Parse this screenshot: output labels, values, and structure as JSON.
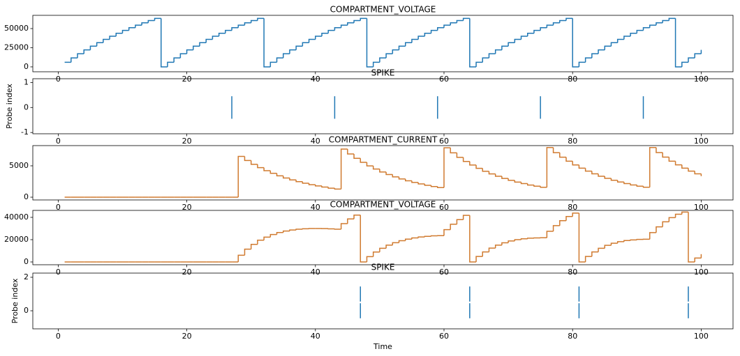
{
  "chart_data": [
    {
      "type": "step",
      "title": "COMPARTMENT_VOLTAGE",
      "color": "#1f77b4",
      "x": [
        1,
        2,
        3,
        4,
        5,
        6,
        7,
        8,
        9,
        10,
        11,
        12,
        13,
        14,
        15,
        16,
        17,
        18,
        19,
        20,
        21,
        22,
        23,
        24,
        25,
        26,
        27,
        28,
        29,
        30,
        31,
        32,
        33,
        34,
        35,
        36,
        37,
        38,
        39,
        40,
        41,
        42,
        43,
        44,
        45,
        46,
        47,
        48,
        49,
        50,
        51,
        52,
        53,
        54,
        55,
        56,
        57,
        58,
        59,
        60,
        61,
        62,
        63,
        64,
        65,
        66,
        67,
        68,
        69,
        70,
        71,
        72,
        73,
        74,
        75,
        76,
        77,
        78,
        79,
        80,
        81,
        82,
        83,
        84,
        85,
        86,
        87,
        88,
        89,
        90,
        91,
        92,
        93,
        94,
        95,
        96,
        97,
        98,
        99,
        100
      ],
      "values": [
        6000,
        11700,
        17100,
        22200,
        27000,
        31600,
        35900,
        40000,
        43900,
        47600,
        51100,
        54400,
        57500,
        60500,
        63300,
        0,
        6000,
        11700,
        17100,
        22200,
        27000,
        31600,
        35900,
        40000,
        43900,
        47600,
        51100,
        54400,
        57500,
        60500,
        63300,
        0,
        6000,
        11700,
        17100,
        22200,
        27000,
        31600,
        35900,
        40000,
        43900,
        47600,
        51100,
        54400,
        57500,
        60500,
        63300,
        0,
        6000,
        11700,
        17100,
        22200,
        27000,
        31600,
        35900,
        40000,
        43900,
        47600,
        51100,
        54400,
        57500,
        60500,
        63300,
        0,
        6000,
        11700,
        17100,
        22200,
        27000,
        31600,
        35900,
        40000,
        43900,
        47600,
        51100,
        54400,
        57500,
        60500,
        63300,
        0,
        6000,
        11700,
        17100,
        22200,
        27000,
        31600,
        35900,
        40000,
        43900,
        47600,
        51100,
        54400,
        57500,
        60500,
        63300,
        0,
        6000,
        11700,
        17100,
        22200
      ],
      "xlim": [
        -3.95,
        104.95
      ],
      "xticks": [
        0,
        20,
        40,
        60,
        80,
        100
      ],
      "ylim": [
        -6400,
        67300
      ],
      "yticks": [
        0,
        25000,
        50000
      ]
    },
    {
      "type": "eventplot",
      "title": "SPIKE",
      "y_label": "Probe index",
      "color": "#1f77b4",
      "events": [
        [
          27,
          43,
          59,
          75,
          91
        ]
      ],
      "xlim": [
        -3.95,
        104.95
      ],
      "xticks": [
        0,
        20,
        40,
        60,
        80,
        100
      ],
      "ylim": [
        -1.05,
        1.15
      ],
      "yticks": [
        -1,
        0,
        1
      ]
    },
    {
      "type": "step",
      "title": "COMPARTMENT_CURRENT",
      "color": "#d07a2f",
      "x": [
        1,
        2,
        3,
        4,
        5,
        6,
        7,
        8,
        9,
        10,
        11,
        12,
        13,
        14,
        15,
        16,
        17,
        18,
        19,
        20,
        21,
        22,
        23,
        24,
        25,
        26,
        27,
        28,
        29,
        30,
        31,
        32,
        33,
        34,
        35,
        36,
        37,
        38,
        39,
        40,
        41,
        42,
        43,
        44,
        45,
        46,
        47,
        48,
        49,
        50,
        51,
        52,
        53,
        54,
        55,
        56,
        57,
        58,
        59,
        60,
        61,
        62,
        63,
        64,
        65,
        66,
        67,
        68,
        69,
        70,
        71,
        72,
        73,
        74,
        75,
        76,
        77,
        78,
        79,
        80,
        81,
        82,
        83,
        84,
        85,
        86,
        87,
        88,
        89,
        90,
        91,
        92,
        93,
        94,
        95,
        96,
        97,
        98,
        99,
        100
      ],
      "values": [
        0,
        0,
        0,
        0,
        0,
        0,
        0,
        0,
        0,
        0,
        0,
        0,
        0,
        0,
        0,
        0,
        0,
        0,
        0,
        0,
        0,
        0,
        0,
        0,
        0,
        0,
        0,
        6500,
        5840,
        5240,
        4710,
        4230,
        3800,
        3410,
        3060,
        2750,
        2470,
        2220,
        1990,
        1790,
        1610,
        1440,
        1300,
        7670,
        6890,
        6190,
        5560,
        4990,
        4480,
        4020,
        3610,
        3240,
        2910,
        2620,
        2350,
        2110,
        1890,
        1700,
        1530,
        7870,
        7070,
        6350,
        5700,
        5120,
        4600,
        4130,
        3710,
        3330,
        2990,
        2680,
        2410,
        2170,
        1940,
        1750,
        1570,
        7910,
        7100,
        6380,
        5730,
        5140,
        4620,
        4150,
        3720,
        3340,
        3000,
        2700,
        2420,
        2170,
        1950,
        1750,
        1580,
        7920,
        7110,
        6390,
        5740,
        5150,
        4630,
        4150,
        3730,
        3350
      ],
      "xlim": [
        -3.95,
        104.95
      ],
      "xticks": [
        0,
        20,
        40,
        60,
        80,
        100
      ],
      "ylim": [
        -440,
        8220
      ],
      "yticks": [
        0,
        5000
      ]
    },
    {
      "type": "step",
      "title": "COMPARTMENT_VOLTAGE",
      "color": "#d07a2f",
      "x": [
        1,
        2,
        3,
        4,
        5,
        6,
        7,
        8,
        9,
        10,
        11,
        12,
        13,
        14,
        15,
        16,
        17,
        18,
        19,
        20,
        21,
        22,
        23,
        24,
        25,
        26,
        27,
        28,
        29,
        30,
        31,
        32,
        33,
        34,
        35,
        36,
        37,
        38,
        39,
        40,
        41,
        42,
        43,
        44,
        45,
        46,
        47,
        48,
        49,
        50,
        51,
        52,
        53,
        54,
        55,
        56,
        57,
        58,
        59,
        60,
        61,
        62,
        63,
        64,
        65,
        66,
        67,
        68,
        69,
        70,
        71,
        72,
        73,
        74,
        75,
        76,
        77,
        78,
        79,
        80,
        81,
        82,
        83,
        84,
        85,
        86,
        87,
        88,
        89,
        90,
        91,
        92,
        93,
        94,
        95,
        96,
        97,
        98,
        99,
        100
      ],
      "values": [
        0,
        0,
        0,
        0,
        0,
        0,
        0,
        0,
        0,
        0,
        0,
        0,
        0,
        0,
        0,
        0,
        0,
        0,
        0,
        0,
        0,
        0,
        0,
        0,
        0,
        0,
        0,
        6000,
        11500,
        15800,
        19500,
        22300,
        24600,
        26400,
        27700,
        28700,
        29400,
        29800,
        30000,
        30000,
        29900,
        29700,
        29400,
        34400,
        38600,
        42000,
        0,
        4800,
        8900,
        12300,
        15100,
        17300,
        19100,
        20500,
        21600,
        22400,
        23000,
        23400,
        23600,
        29000,
        33800,
        38000,
        41800,
        0,
        4900,
        9000,
        12400,
        15100,
        17200,
        18800,
        20000,
        20800,
        21300,
        21600,
        21700,
        27500,
        32600,
        37000,
        40800,
        43800,
        0,
        4900,
        9000,
        12300,
        14900,
        16800,
        18200,
        19200,
        19800,
        20200,
        20400,
        26300,
        31500,
        36000,
        39800,
        42800,
        44800,
        0,
        3500,
        7000
      ],
      "xlim": [
        -3.95,
        104.95
      ],
      "xticks": [
        0,
        20,
        40,
        60,
        80,
        100
      ],
      "ylim": [
        -2500,
        46250
      ],
      "yticks": [
        0,
        20000,
        40000
      ]
    },
    {
      "type": "eventplot",
      "title": "SPIKE",
      "y_label": "Probe index",
      "x_label": "Time",
      "color": "#1f77b4",
      "events": [
        [
          47,
          64,
          81,
          98
        ],
        [
          47,
          64,
          81,
          98
        ]
      ],
      "xlim": [
        -3.95,
        104.95
      ],
      "xticks": [
        0,
        20,
        40,
        60,
        80,
        100
      ],
      "ylim": [
        -1.08,
        2.25
      ],
      "yticks": [
        0,
        2
      ]
    }
  ]
}
